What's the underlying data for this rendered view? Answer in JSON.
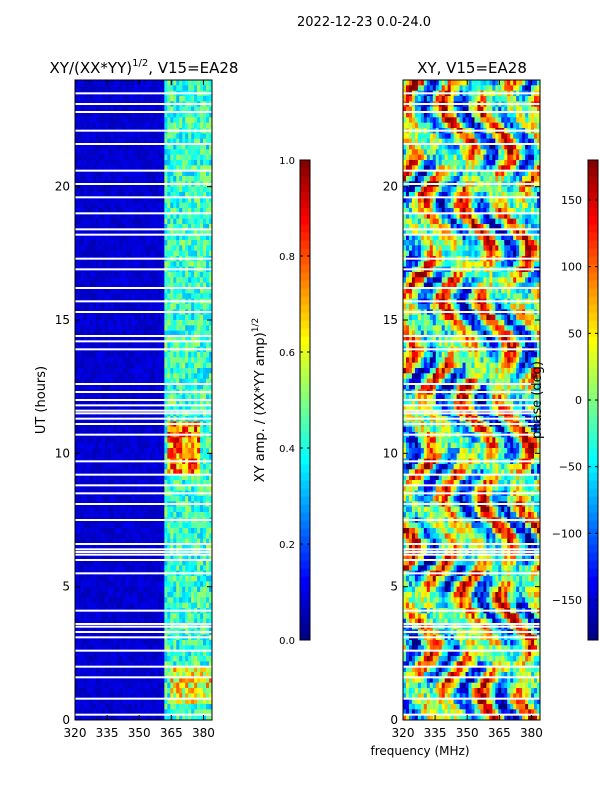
{
  "figure": {
    "suptitle": "2022-12-23 0.0-24.0"
  },
  "colors": {
    "bg": "#ffffff",
    "axis": "#000000"
  },
  "chart_data": [
    {
      "type": "heatmap",
      "id": "amp",
      "title_main": "XY/(XX*YY)",
      "title_exp": "1/2",
      "title_suffix": ", V15=EA28",
      "xlabel": "",
      "ylabel": "UT (hours)",
      "xlim": [
        320,
        384
      ],
      "ylim": [
        0,
        24
      ],
      "xticks": [
        320,
        335,
        350,
        365,
        380
      ],
      "yticks": [
        0,
        5,
        10,
        15,
        20
      ],
      "colormap": "jet",
      "zlim": [
        0.0,
        1.0
      ],
      "colorbar": {
        "label_main": "XY amp. / (XX*YY amp)",
        "label_exp": "1/2",
        "ticks": [
          0.0,
          0.2,
          0.4,
          0.6,
          0.8,
          1.0
        ],
        "tick_labels": [
          "0.0",
          "0.2",
          "0.4",
          "0.6",
          "0.8",
          "1.0"
        ]
      },
      "flagged_ut_hours": [
        0.2,
        0.8,
        1.6,
        2.0,
        2.6,
        3.1,
        3.3,
        3.5,
        3.6,
        4.1,
        5.5,
        6.0,
        6.2,
        6.3,
        6.4,
        6.6,
        7.5,
        8.1,
        8.5,
        8.8,
        9.2,
        9.7,
        10.7,
        11.1,
        11.3,
        11.5,
        11.6,
        11.8,
        12.0,
        12.3,
        12.6,
        13.9,
        14.2,
        14.4,
        15.3,
        15.7,
        16.2,
        16.9,
        17.3,
        18.2,
        18.4,
        19.0,
        19.6,
        20.1,
        20.6,
        21.6,
        22.1,
        22.8,
        23.1,
        23.5
      ]
    },
    {
      "type": "heatmap",
      "id": "phase",
      "title_main": "XY, V15=EA28",
      "title_exp": "",
      "title_suffix": "",
      "xlabel": "frequency (MHz)",
      "ylabel": "",
      "xlim": [
        320,
        384
      ],
      "ylim": [
        0,
        24
      ],
      "xticks": [
        320,
        335,
        350,
        365,
        380
      ],
      "yticks": [
        0,
        5,
        10,
        15,
        20
      ],
      "colormap": "jet",
      "zlim": [
        -180,
        180
      ],
      "colorbar": {
        "label_main": "phase (deg)",
        "label_exp": "",
        "ticks": [
          -150,
          -100,
          -50,
          0,
          50,
          100,
          150
        ],
        "tick_labels": [
          "−150",
          "−100",
          "−50",
          "0",
          "50",
          "100",
          "150"
        ]
      },
      "flagged_ut_hours": [
        0.2,
        0.8,
        1.6,
        2.0,
        2.6,
        3.1,
        3.3,
        3.5,
        3.6,
        4.1,
        5.5,
        6.0,
        6.2,
        6.3,
        6.4,
        6.6,
        7.5,
        8.1,
        8.5,
        8.8,
        9.2,
        9.7,
        10.7,
        11.1,
        11.3,
        11.5,
        11.6,
        11.8,
        12.0,
        12.3,
        12.6,
        13.9,
        14.2,
        14.4,
        15.3,
        15.7,
        16.2,
        16.9,
        17.3,
        18.2,
        18.4,
        19.0,
        19.6,
        20.1,
        20.6,
        21.6,
        22.1,
        22.8,
        23.1,
        23.5
      ]
    }
  ]
}
